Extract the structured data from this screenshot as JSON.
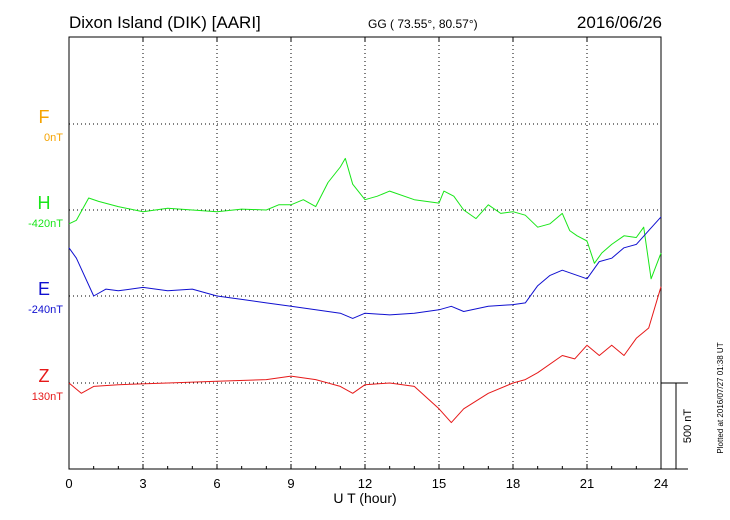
{
  "header": {
    "station": "Dixon Island (DIK)  [AARI]",
    "coords": "GG ( 73.55°,  80.57°)",
    "date": "2016/06/26"
  },
  "side_note": "Plotted at 2016/07/27 01:38 UT",
  "scale_label": "500 nT",
  "colors": {
    "F": "#f5a300",
    "H": "#19e619",
    "E": "#1010d0",
    "Z": "#e61919",
    "grid": "#000000"
  },
  "chart_data": {
    "type": "line",
    "xlabel": "U T (hour)",
    "xlim": [
      0,
      24
    ],
    "xticks": [
      "0",
      "3",
      "6",
      "9",
      "12",
      "15",
      "18",
      "21",
      "24"
    ],
    "channels": [
      {
        "name": "F",
        "baseline": "0nT",
        "values": []
      },
      {
        "name": "H",
        "baseline": "-420nT",
        "x": [
          0,
          0.3,
          0.8,
          1.2,
          2,
          3,
          4,
          5,
          6,
          7,
          8,
          8.5,
          9,
          9.5,
          10,
          10.5,
          11,
          11.2,
          11.5,
          12,
          12.5,
          13,
          14,
          15,
          15.2,
          15.6,
          16,
          16.5,
          17,
          17.5,
          18,
          18.5,
          19,
          19.5,
          20,
          20.3,
          20.6,
          21,
          21.3,
          21.6,
          22,
          22.5,
          23,
          23.3,
          23.6,
          24
        ],
        "values": [
          -80,
          -60,
          70,
          50,
          20,
          -10,
          10,
          0,
          -10,
          5,
          0,
          30,
          30,
          60,
          20,
          160,
          250,
          300,
          150,
          60,
          80,
          110,
          60,
          40,
          110,
          80,
          0,
          -50,
          30,
          -20,
          -10,
          -30,
          -100,
          -80,
          -20,
          -120,
          -150,
          -180,
          -310,
          -250,
          -200,
          -150,
          -160,
          -100,
          -400,
          -250
        ]
      },
      {
        "name": "E",
        "baseline": "-240nT",
        "x": [
          0,
          0.3,
          1,
          1.5,
          2,
          3,
          4,
          5,
          6,
          7,
          8,
          9,
          10,
          11,
          11.5,
          12,
          13,
          14,
          15,
          15.5,
          16,
          17,
          18,
          18.5,
          19,
          19.5,
          20,
          21,
          21.5,
          22,
          22.5,
          23,
          23.5,
          24
        ],
        "values": [
          280,
          220,
          0,
          40,
          30,
          50,
          30,
          40,
          0,
          -20,
          -40,
          -60,
          -80,
          -100,
          -130,
          -100,
          -110,
          -100,
          -80,
          -60,
          -90,
          -60,
          -50,
          -40,
          60,
          120,
          150,
          100,
          200,
          220,
          280,
          300,
          380,
          460
        ]
      },
      {
        "name": "Z",
        "baseline": "130nT",
        "x": [
          0,
          0.5,
          1,
          2,
          4,
          6,
          8,
          9,
          10,
          11,
          11.5,
          12,
          13,
          14,
          15,
          15.5,
          16,
          17,
          18,
          18.5,
          19,
          20,
          20.5,
          21,
          21.5,
          22,
          22.5,
          23,
          23.5,
          24
        ],
        "values": [
          0,
          -60,
          -20,
          -10,
          0,
          10,
          20,
          40,
          20,
          -20,
          -60,
          -10,
          0,
          -20,
          -150,
          -230,
          -150,
          -60,
          0,
          20,
          60,
          160,
          140,
          220,
          160,
          220,
          160,
          260,
          320,
          560
        ]
      }
    ],
    "scale": {
      "nT": 500
    },
    "grid": true
  }
}
